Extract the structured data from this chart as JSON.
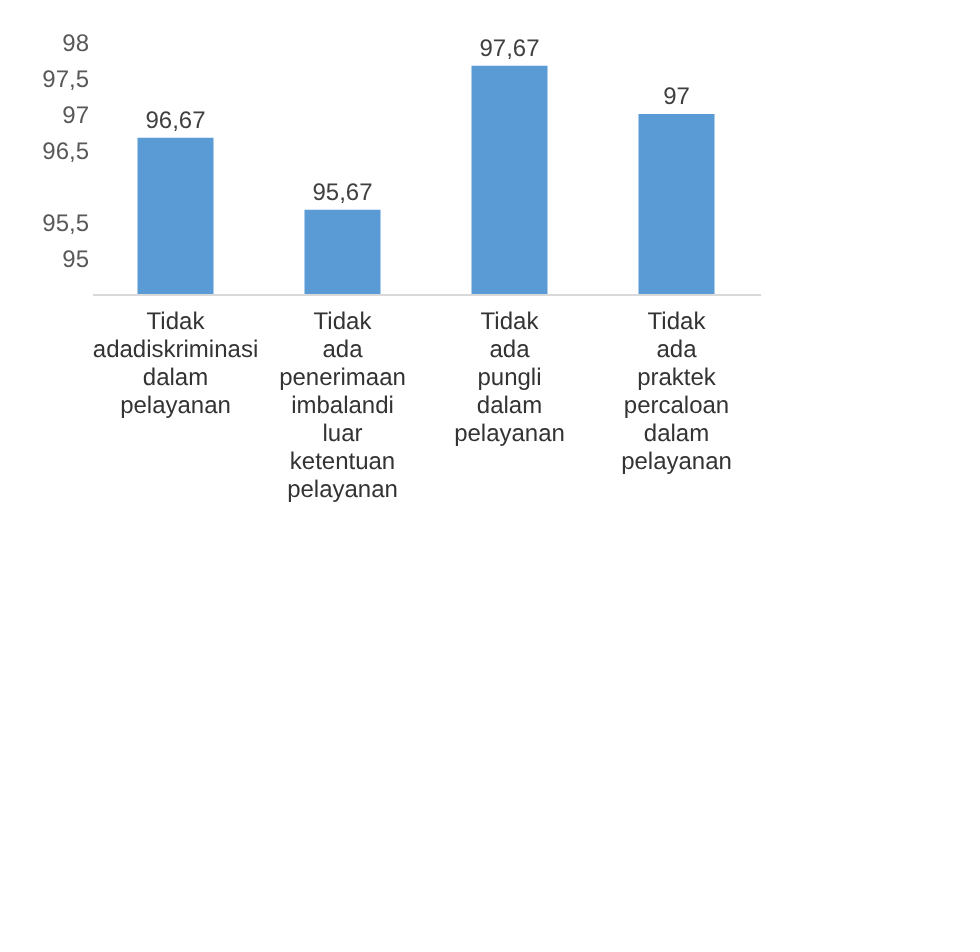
{
  "chart_data": {
    "type": "bar",
    "categories": [
      "Tidak adadiskriminasi dalam pelayanan",
      "Tidak ada penerimaan imbalandi luar ketentuan pelayanan",
      "Tidak ada pungli dalam pelayanan",
      "Tidak ada praktek percaloan dalam pelayanan"
    ],
    "values": [
      96.67,
      95.67,
      97.67,
      97
    ],
    "value_labels": [
      "96,67",
      "95,67",
      "97,67",
      "97"
    ],
    "color": "#5b9bd5",
    "ylim": [
      94.5,
      98
    ],
    "yticks": [
      95,
      {
        "value": 95.5,
        "label": "95,5"
      },
      {
        "value": 96.5,
        "label": "96,5"
      },
      97,
      {
        "value": 97.5,
        "label": "97,5"
      },
      98
    ],
    "grid": false
  }
}
